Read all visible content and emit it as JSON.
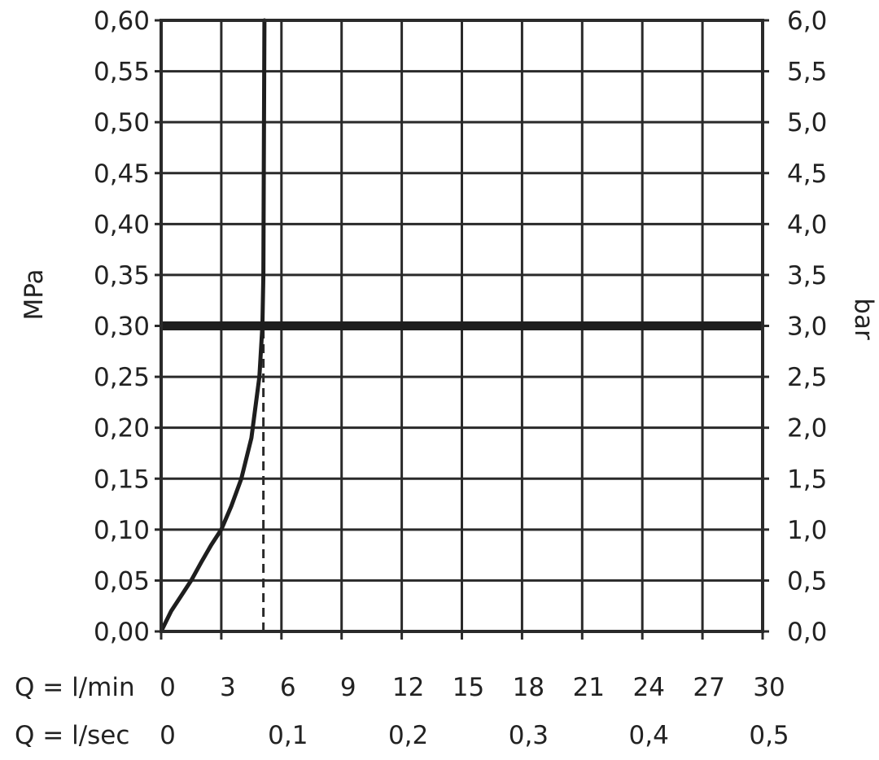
{
  "chart_data": {
    "type": "line",
    "title": "",
    "x_rows": [
      {
        "label": "Q = l/min",
        "ticks": [
          "0",
          "3",
          "6",
          "9",
          "12",
          "15",
          "18",
          "21",
          "24",
          "27",
          "30"
        ],
        "tick_values": [
          0,
          3,
          6,
          9,
          12,
          15,
          18,
          21,
          24,
          27,
          30
        ]
      },
      {
        "label": "Q = l/sec",
        "ticks": [
          "0",
          "0,1",
          "0,2",
          "0,3",
          "0,4",
          "0,5"
        ],
        "tick_values": [
          0,
          0.1,
          0.2,
          0.3,
          0.4,
          0.5
        ]
      }
    ],
    "xlim": [
      0,
      30
    ],
    "x_grid_step": 3,
    "y_left": {
      "label": "MPa",
      "ticks": [
        "0,00",
        "0,05",
        "0,10",
        "0,15",
        "0,20",
        "0,25",
        "0,30",
        "0,35",
        "0,40",
        "0,45",
        "0,50",
        "0,55",
        "0,60"
      ],
      "ylim": [
        0,
        0.6
      ]
    },
    "y_right": {
      "label": "bar",
      "ticks": [
        "0,0",
        "0,5",
        "1,0",
        "1,5",
        "2,0",
        "2,5",
        "3,0",
        "3,5",
        "4,0",
        "4,5",
        "5,0",
        "5,5",
        "6,0"
      ],
      "ylim": [
        0,
        6.0
      ]
    },
    "grid": true,
    "series": [
      {
        "style": "curve",
        "x": [
          0,
          0.5,
          1,
          1.5,
          2,
          2.5,
          3,
          3.5,
          4,
          4.5,
          4.9,
          5.05,
          5.1,
          5.12,
          5.15
        ],
        "y": [
          0,
          0.02,
          0.035,
          0.05,
          0.068,
          0.085,
          0.1,
          0.123,
          0.15,
          0.19,
          0.25,
          0.3,
          0.35,
          0.45,
          0.6
        ]
      }
    ],
    "reference_lines": [
      {
        "orientation": "horizontal",
        "y": 0.3,
        "style": "bold"
      },
      {
        "orientation": "vertical",
        "x": 5.1,
        "y_from": 0,
        "y_to": 0.3,
        "style": "dashed"
      }
    ]
  }
}
